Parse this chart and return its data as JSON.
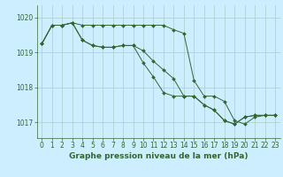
{
  "background_color": "#cceeff",
  "grid_color": "#aacccc",
  "line_color": "#336633",
  "marker_color": "#336633",
  "title": "Graphe pression niveau de la mer (hPa)",
  "tick_fontsize": 5.5,
  "label_fontsize": 6.5,
  "ylim": [
    1016.55,
    1020.35
  ],
  "xlim": [
    -0.5,
    23.5
  ],
  "yticks": [
    1017,
    1018,
    1019,
    1020
  ],
  "xticks": [
    0,
    1,
    2,
    3,
    4,
    5,
    6,
    7,
    8,
    9,
    10,
    11,
    12,
    13,
    14,
    15,
    16,
    17,
    18,
    19,
    20,
    21,
    22,
    23
  ],
  "series1_x": [
    0,
    1,
    2,
    3,
    4,
    5,
    6,
    7,
    8,
    9,
    10,
    11,
    12,
    13,
    14,
    15,
    16,
    17,
    18,
    19,
    20,
    21,
    22,
    23
  ],
  "series1_y": [
    1019.25,
    1019.78,
    1019.78,
    1019.85,
    1019.78,
    1019.78,
    1019.78,
    1019.78,
    1019.78,
    1019.78,
    1019.78,
    1019.78,
    1019.78,
    1019.65,
    1019.55,
    1018.2,
    1017.75,
    1017.75,
    1017.6,
    1017.05,
    1016.95,
    1017.15,
    1017.2,
    1017.2
  ],
  "series2_x": [
    0,
    1,
    2,
    3,
    4,
    5,
    6,
    7,
    8,
    9,
    10,
    11,
    12,
    13,
    14,
    15,
    16,
    17,
    18,
    19,
    20,
    21,
    22,
    23
  ],
  "series2_y": [
    1019.25,
    1019.78,
    1019.78,
    1019.85,
    1019.35,
    1019.2,
    1019.15,
    1019.15,
    1019.2,
    1019.2,
    1019.05,
    1018.75,
    1018.5,
    1018.25,
    1017.75,
    1017.75,
    1017.5,
    1017.35,
    1017.05,
    1016.95,
    1017.15,
    1017.2,
    1017.2,
    1017.2
  ],
  "series3_x": [
    0,
    1,
    2,
    3,
    4,
    5,
    6,
    7,
    8,
    9,
    10,
    11,
    12,
    13,
    14,
    15,
    16,
    17,
    18,
    19,
    20,
    21,
    22,
    23
  ],
  "series3_y": [
    1019.25,
    1019.78,
    1019.78,
    1019.85,
    1019.35,
    1019.2,
    1019.15,
    1019.15,
    1019.2,
    1019.2,
    1018.7,
    1018.3,
    1017.85,
    1017.75,
    1017.75,
    1017.75,
    1017.5,
    1017.35,
    1017.05,
    1016.95,
    1017.15,
    1017.2,
    1017.2,
    1017.2
  ]
}
